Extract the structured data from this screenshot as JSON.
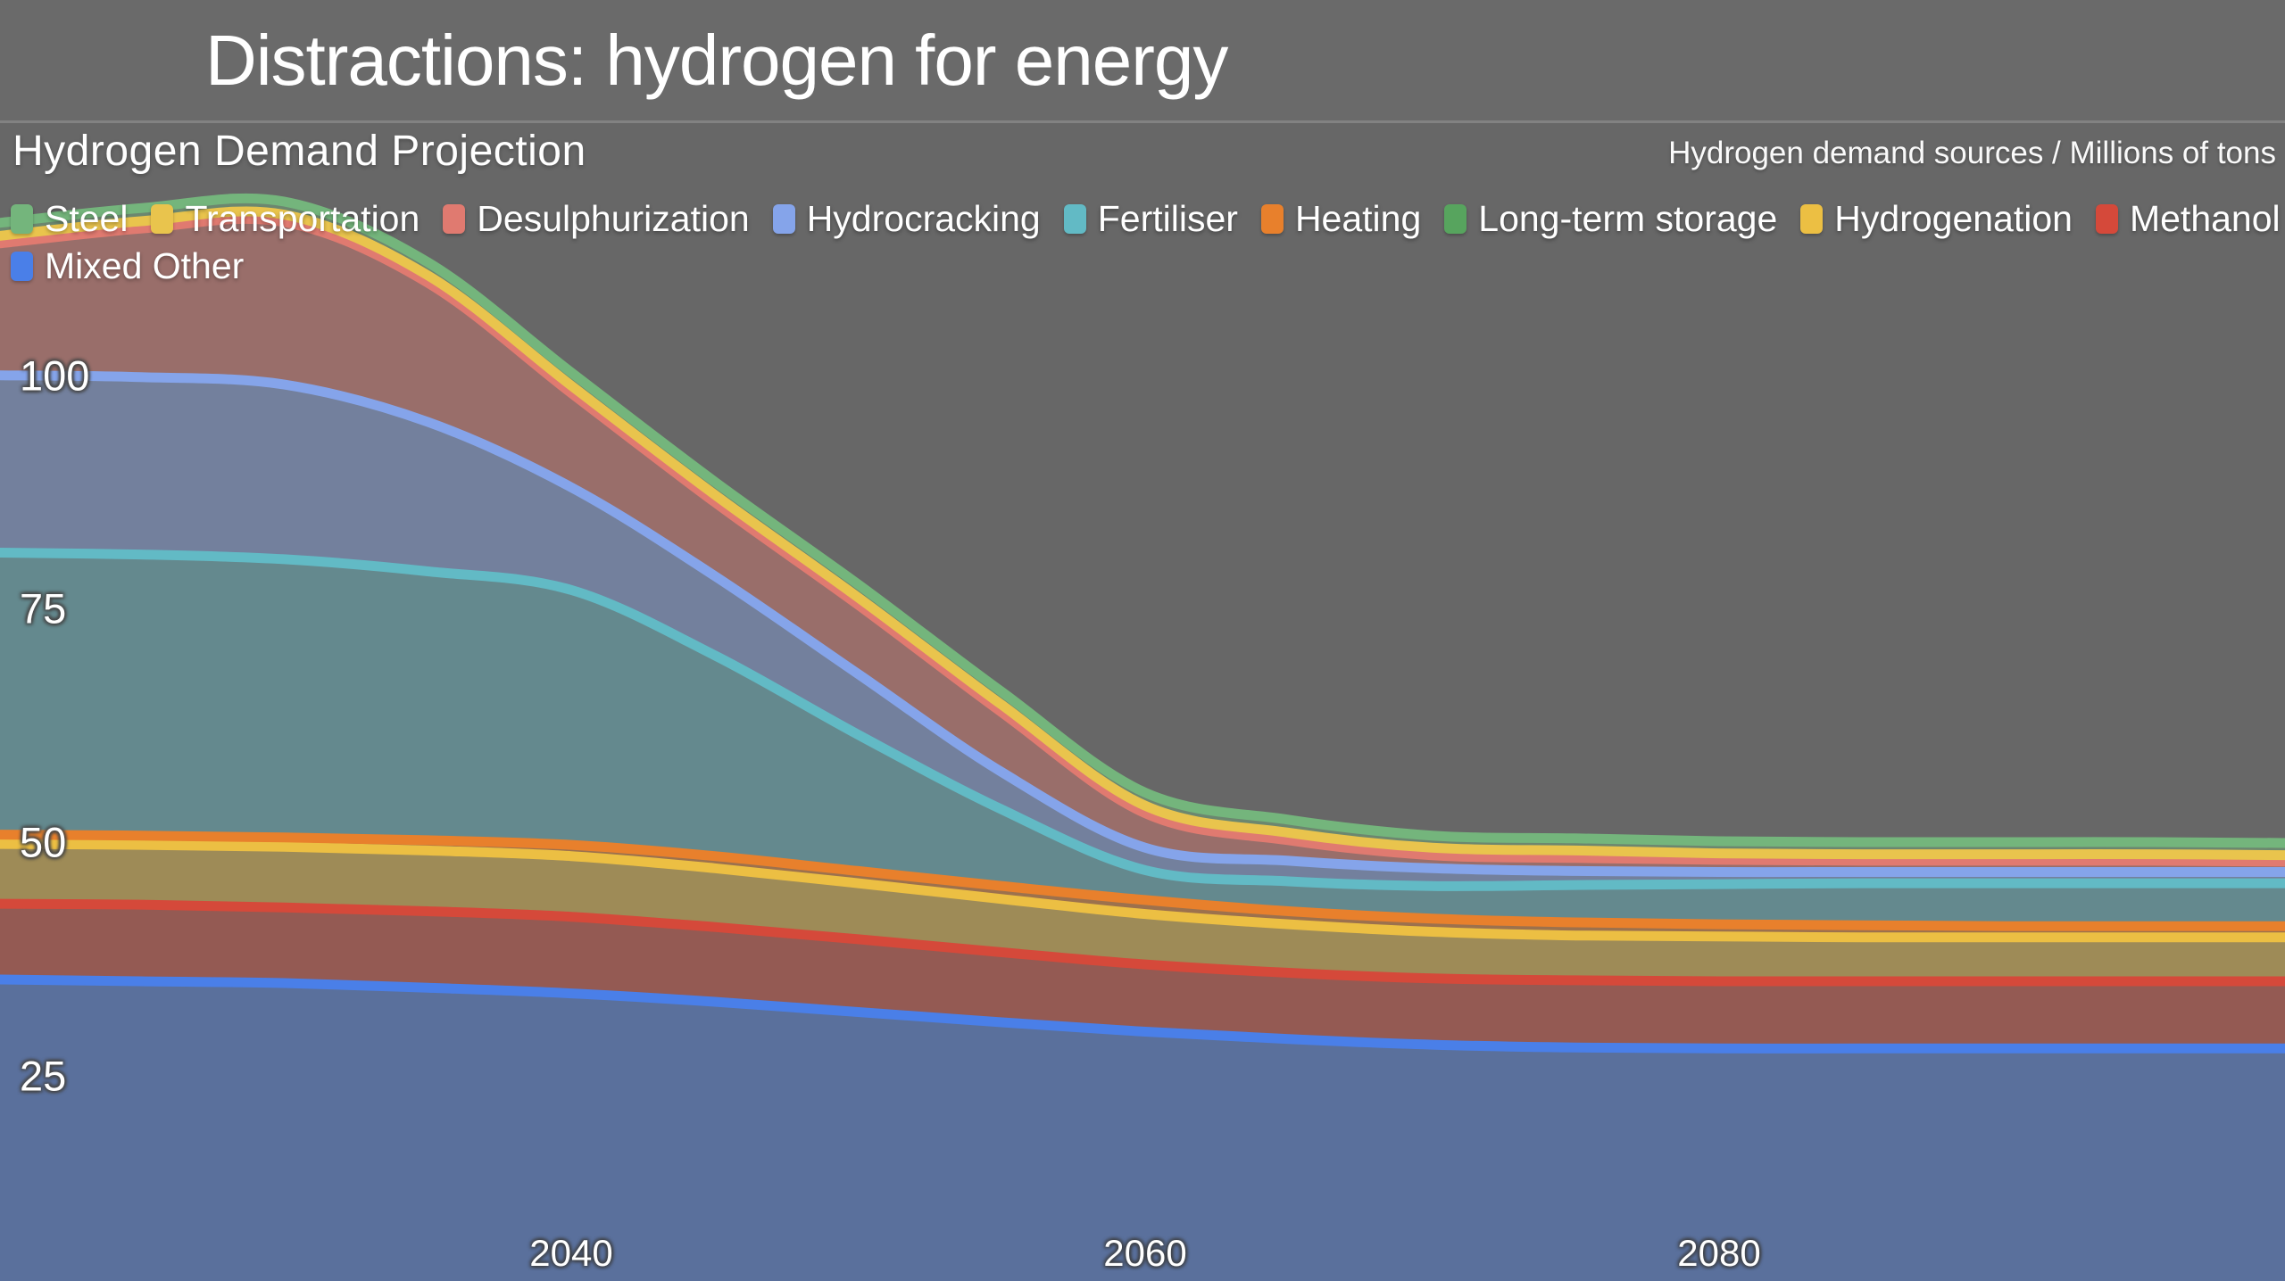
{
  "header": {
    "title": "Distractions: hydrogen for energy"
  },
  "chart": {
    "title": "Hydrogen Demand Projection",
    "caption": "Hydrogen demand sources / Millions of tons"
  },
  "chart_data": {
    "type": "area",
    "stacked": true,
    "title": "Hydrogen Demand Projection",
    "units_caption": "Hydrogen demand sources / Millions of tons",
    "background_color": "#676767",
    "grid": false,
    "legend_position": "top-left",
    "x_range": [
      2020,
      2100
    ],
    "x_ticks": [
      "2040",
      "2060",
      "2080"
    ],
    "x_tick_values": [
      2040,
      2060,
      2080
    ],
    "y_ticks": [
      "100",
      "75",
      "50",
      "25"
    ],
    "y_tick_values": [
      100,
      75,
      50,
      25
    ],
    "x": [
      2020,
      2025,
      2030,
      2035,
      2040,
      2045,
      2050,
      2055,
      2060,
      2065,
      2070,
      2075,
      2080,
      2085,
      2090,
      2095,
      2100
    ],
    "stack_order_bottom_to_top": [
      "Mixed Other",
      "Methanol",
      "Hydrogenation",
      "Long-term storage",
      "Heating",
      "Fertiliser",
      "Hydrocracking",
      "Desulphurization",
      "Transportation",
      "Steel"
    ],
    "series": [
      {
        "name": "Steel",
        "color": "#74b57c",
        "values": [
          1.4,
          1.4,
          1.4,
          1.4,
          1.4,
          1.4,
          1.4,
          1.4,
          1.4,
          1.4,
          1.3,
          1.3,
          1.3,
          1.3,
          1.3,
          1.3,
          1.3
        ]
      },
      {
        "name": "Transportation",
        "color": "#e9c44d",
        "values": [
          0.8,
          0.8,
          0.8,
          0.8,
          0.8,
          0.8,
          0.8,
          0.8,
          0.8,
          0.8,
          0.8,
          0.8,
          0.7,
          0.7,
          0.7,
          0.7,
          0.7
        ]
      },
      {
        "name": "Desulphurization",
        "color": "#e07a70",
        "values": [
          14.1,
          15.9,
          17.4,
          14.9,
          10.1,
          7.9,
          7.4,
          6.4,
          3.7,
          2.2,
          1.4,
          1.4,
          1.3,
          1.2,
          1.2,
          1.2,
          1.1
        ]
      },
      {
        "name": "Hydrocracking",
        "color": "#85a4ea",
        "values": [
          19.0,
          19.0,
          18.7,
          16.0,
          11.0,
          8.5,
          6.5,
          4.0,
          2.4,
          2.2,
          1.9,
          1.5,
          1.3,
          1.2,
          1.2,
          1.2,
          1.2
        ]
      },
      {
        "name": "Fertiliser",
        "color": "#62bac5",
        "values": [
          30.2,
          30.1,
          29.8,
          28.8,
          27.3,
          21.5,
          14.6,
          8.2,
          3.2,
          3.2,
          3.5,
          4.0,
          4.3,
          4.5,
          4.6,
          4.6,
          4.6
        ]
      },
      {
        "name": "Heating",
        "color": "#e8802c",
        "values": [
          1.0,
          1.0,
          1.0,
          1.1,
          1.2,
          1.3,
          1.3,
          1.4,
          1.5,
          1.4,
          1.4,
          1.4,
          1.3,
          1.3,
          1.2,
          1.2,
          1.2
        ]
      },
      {
        "name": "Long-term storage",
        "color": "#57a45e",
        "values": [
          0,
          0,
          0,
          0,
          0,
          0,
          0,
          0,
          0,
          0,
          0,
          0,
          0,
          0,
          0,
          0,
          0
        ]
      },
      {
        "name": "Hydrogenation",
        "color": "#ecbf43",
        "values": [
          6.4,
          6.4,
          6.5,
          6.5,
          6.5,
          6.3,
          6.0,
          5.7,
          5.4,
          5.2,
          5.0,
          4.8,
          4.8,
          4.7,
          4.7,
          4.7,
          4.7
        ]
      },
      {
        "name": "Methanol",
        "color": "#d5493a",
        "values": [
          8.1,
          8.2,
          8.1,
          8.2,
          8.2,
          8.0,
          7.8,
          7.5,
          7.2,
          7.1,
          7.1,
          7.2,
          7.2,
          7.2,
          7.2,
          7.2,
          7.2
        ]
      },
      {
        "name": "Mixed Other",
        "color": "#4a7fe8",
        "values": [
          35.3,
          35.1,
          34.9,
          34.4,
          33.8,
          32.9,
          31.8,
          30.7,
          29.7,
          28.9,
          28.3,
          28.0,
          27.9,
          27.9,
          27.9,
          27.9,
          27.9
        ]
      }
    ],
    "fill_opacity": 0.42,
    "line_width": 11
  }
}
